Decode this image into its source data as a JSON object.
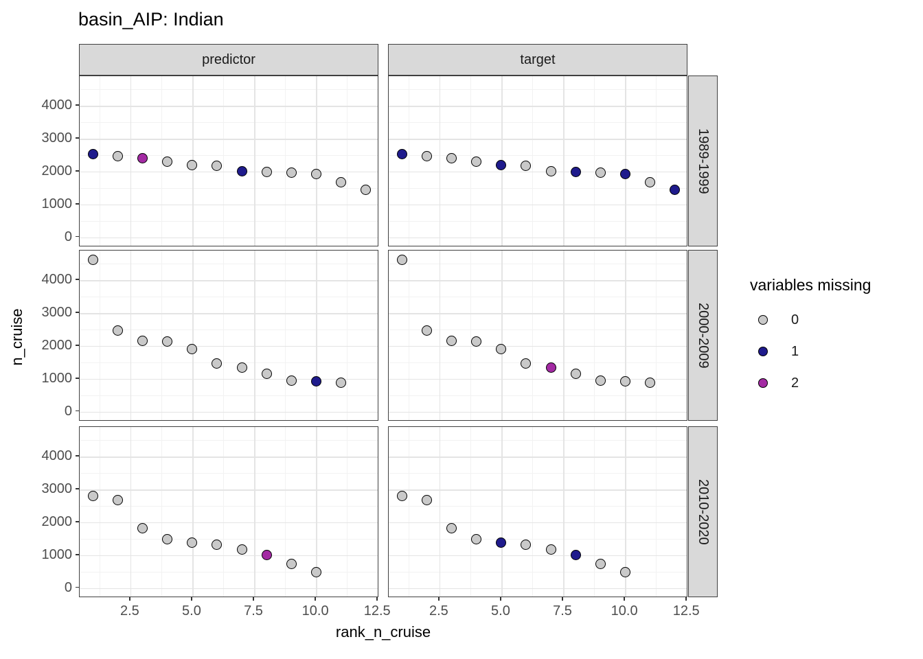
{
  "chart_data": {
    "type": "scatter",
    "title": "basin_AIP: Indian",
    "xlabel": "rank_n_cruise",
    "ylabel": "n_cruise",
    "legend_title": "variables missing",
    "legend": [
      {
        "label": "0",
        "missing": 0,
        "color": "#C9C9C9"
      },
      {
        "label": "1",
        "missing": 1,
        "color": "#1F1B8C"
      },
      {
        "label": "2",
        "missing": 2,
        "color": "#A32AA3"
      }
    ],
    "col_facets": [
      "predictor",
      "target"
    ],
    "row_facets": [
      "1989-1999",
      "2000-2009",
      "2010-2020"
    ],
    "x_ticks": [
      "2.5",
      "5.0",
      "7.5",
      "10.0",
      "12.5"
    ],
    "x_tick_values": [
      2.5,
      5,
      7.5,
      10,
      12.5
    ],
    "y_ticks": [
      "0",
      "1000",
      "2000",
      "3000",
      "4000"
    ],
    "y_tick_values": [
      0,
      1000,
      2000,
      3000,
      4000
    ],
    "x_minor": [
      1.25,
      3.75,
      6.25,
      8.75,
      11.25
    ],
    "y_minor": [
      500,
      1500,
      2500,
      3500,
      4500
    ],
    "x_domain": [
      0.45,
      12.55
    ],
    "y_domain": [
      -300,
      4900
    ],
    "grid": true,
    "legend_position": "right",
    "colors": {
      "strip_fill": "#D9D9D9",
      "panel_border": "#3F3F3F",
      "grid_major": "#E4E4E4",
      "grid_minor": "#F2F2F2",
      "axis_text": "#4D4D4D",
      "point_border": "#000000"
    },
    "panels": [
      {
        "col": "predictor",
        "row": "1989-1999",
        "points": [
          [
            1,
            2530,
            1
          ],
          [
            2,
            2470,
            0
          ],
          [
            3,
            2400,
            2
          ],
          [
            4,
            2290,
            0
          ],
          [
            5,
            2190,
            0
          ],
          [
            6,
            2170,
            0
          ],
          [
            7,
            2010,
            1
          ],
          [
            8,
            1990,
            0
          ],
          [
            9,
            1960,
            0
          ],
          [
            10,
            1920,
            0
          ],
          [
            11,
            1680,
            0
          ],
          [
            12,
            1450,
            0
          ]
        ]
      },
      {
        "col": "target",
        "row": "1989-1999",
        "points": [
          [
            1,
            2530,
            1
          ],
          [
            2,
            2470,
            0
          ],
          [
            3,
            2400,
            0
          ],
          [
            4,
            2290,
            0
          ],
          [
            5,
            2190,
            1
          ],
          [
            6,
            2170,
            0
          ],
          [
            7,
            2010,
            0
          ],
          [
            8,
            1990,
            1
          ],
          [
            9,
            1960,
            0
          ],
          [
            10,
            1920,
            1
          ],
          [
            11,
            1680,
            0
          ],
          [
            12,
            1450,
            1
          ]
        ]
      },
      {
        "col": "predictor",
        "row": "2000-2009",
        "points": [
          [
            1,
            4620,
            0
          ],
          [
            2,
            2470,
            0
          ],
          [
            3,
            2160,
            0
          ],
          [
            4,
            2130,
            0
          ],
          [
            5,
            1910,
            0
          ],
          [
            6,
            1470,
            0
          ],
          [
            7,
            1340,
            0
          ],
          [
            8,
            1160,
            0
          ],
          [
            9,
            950,
            0
          ],
          [
            10,
            930,
            1
          ],
          [
            11,
            870,
            0
          ]
        ]
      },
      {
        "col": "target",
        "row": "2000-2009",
        "points": [
          [
            1,
            4620,
            0
          ],
          [
            2,
            2470,
            0
          ],
          [
            3,
            2160,
            0
          ],
          [
            4,
            2130,
            0
          ],
          [
            5,
            1910,
            0
          ],
          [
            6,
            1470,
            0
          ],
          [
            7,
            1340,
            2
          ],
          [
            8,
            1160,
            0
          ],
          [
            9,
            950,
            0
          ],
          [
            10,
            930,
            0
          ],
          [
            11,
            870,
            0
          ]
        ]
      },
      {
        "col": "predictor",
        "row": "2010-2020",
        "points": [
          [
            1,
            2800,
            0
          ],
          [
            2,
            2670,
            0
          ],
          [
            3,
            1810,
            0
          ],
          [
            4,
            1490,
            0
          ],
          [
            5,
            1390,
            0
          ],
          [
            6,
            1310,
            0
          ],
          [
            7,
            1170,
            0
          ],
          [
            8,
            1000,
            2
          ],
          [
            9,
            730,
            0
          ],
          [
            10,
            490,
            0
          ]
        ]
      },
      {
        "col": "target",
        "row": "2010-2020",
        "points": [
          [
            1,
            2800,
            0
          ],
          [
            2,
            2670,
            0
          ],
          [
            3,
            1810,
            0
          ],
          [
            4,
            1490,
            0
          ],
          [
            5,
            1390,
            1
          ],
          [
            6,
            1310,
            0
          ],
          [
            7,
            1170,
            0
          ],
          [
            8,
            1000,
            1
          ],
          [
            9,
            730,
            0
          ],
          [
            10,
            490,
            0
          ]
        ]
      }
    ]
  }
}
